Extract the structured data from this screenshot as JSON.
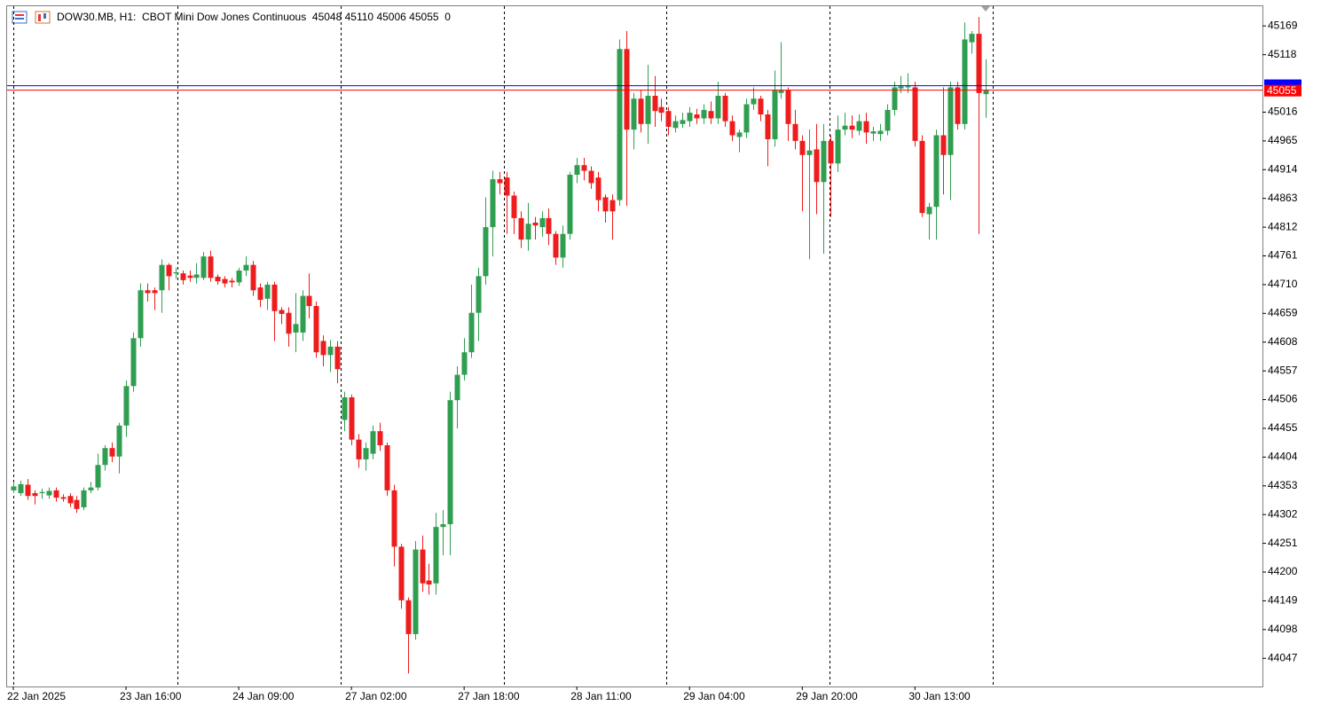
{
  "chart_data": {
    "type": "candlestick",
    "symbol": "DOW30.MB, H1:",
    "description": "CBOT Mini Dow Jones Continuous",
    "volume": 0,
    "up_color": "#2f9e50",
    "down_color": "#ee1c1c",
    "grid": false,
    "ylim": [
      43997,
      45204
    ],
    "yticks": [
      44047,
      44098,
      44149,
      44200,
      44251,
      44302,
      44353,
      44404,
      44455,
      44506,
      44557,
      44608,
      44659,
      44710,
      44761,
      44812,
      44863,
      44914,
      44965,
      45016,
      45118,
      45169
    ],
    "ask_line": {
      "value": 45063,
      "color": "#0000ff"
    },
    "bid_line": {
      "value": 45055,
      "color": "#ff0000"
    },
    "categories": [
      "22 Jan 2025",
      null,
      null,
      null,
      null,
      null,
      null,
      null,
      null,
      null,
      null,
      null,
      null,
      null,
      null,
      null,
      "23 Jan 16:00",
      null,
      null,
      null,
      null,
      null,
      null,
      null,
      null,
      null,
      null,
      null,
      null,
      null,
      null,
      null,
      "24 Jan 09:00",
      null,
      null,
      null,
      null,
      null,
      null,
      null,
      null,
      null,
      null,
      null,
      null,
      null,
      null,
      null,
      "27 Jan 02:00",
      null,
      null,
      null,
      null,
      null,
      null,
      null,
      null,
      null,
      null,
      null,
      null,
      null,
      null,
      null,
      "27 Jan 18:00",
      null,
      null,
      null,
      null,
      null,
      null,
      null,
      null,
      null,
      null,
      null,
      null,
      null,
      null,
      null,
      "28 Jan 11:00",
      null,
      null,
      null,
      null,
      null,
      null,
      null,
      null,
      null,
      null,
      null,
      null,
      null,
      null,
      null,
      "29 Jan 04:00",
      null,
      null,
      null,
      null,
      null,
      null,
      null,
      null,
      null,
      null,
      null,
      null,
      null,
      null,
      null,
      "29 Jan 20:00",
      null,
      null,
      null,
      null,
      null,
      null,
      null,
      null,
      null,
      null,
      null,
      null,
      null,
      null,
      null,
      "30 Jan 13:00",
      null,
      null,
      null,
      null,
      null,
      null,
      null,
      null,
      null,
      null
    ],
    "open": [
      44345,
      44340,
      44355,
      44340,
      44340,
      44336,
      44345,
      44333,
      44335,
      44328,
      44315,
      44345,
      44350,
      44390,
      44420,
      44405,
      44460,
      44530,
      44615,
      44700,
      44700,
      44700,
      44745,
      44730,
      44730,
      44726,
      44722,
      44722,
      44760,
      44724,
      44720,
      44717,
      44714,
      44735,
      44745,
      44705,
      44685,
      44710,
      44665,
      44660,
      44625,
      44625,
      44690,
      44672,
      44610,
      44585,
      44600,
      44470,
      44510,
      44435,
      44400,
      44410,
      44450,
      44425,
      44345,
      44245,
      44150,
      44090,
      44240,
      44185,
      44180,
      44280,
      44285,
      44505,
      44550,
      44590,
      44660,
      44725,
      44812,
      44897,
      44900,
      44868,
      44828,
      44790,
      44820,
      44812,
      44828,
      44800,
      44758,
      44800,
      44905,
      44922,
      44912,
      44900,
      44865,
      44860,
      44860,
      45128,
      44985,
      45040,
      44995,
      45045,
      45025,
      45018,
      44988,
      44995,
      45000,
      45012,
      45005,
      45018,
      45005,
      45045,
      45000,
      44972,
      44980,
      45030,
      45040,
      45012,
      44968,
      45050,
      45055,
      44995,
      44965,
      44940,
      44950,
      44892,
      44965,
      44925,
      44985,
      44992,
      44983,
      45000,
      44978,
      44977,
      44983,
      45020,
      45058,
      45060,
      45060,
      44965,
      44835,
      44848,
      44975,
      44940,
      45060,
      44995,
      45140,
      45155,
      45048
    ],
    "high": [
      44358,
      44362,
      44365,
      44345,
      44348,
      44350,
      44350,
      44338,
      44340,
      44335,
      44350,
      44360,
      44410,
      44425,
      44430,
      44465,
      44540,
      44625,
      44712,
      44712,
      44705,
      44755,
      44748,
      44740,
      44735,
      44735,
      44748,
      44768,
      44770,
      44728,
      44725,
      44722,
      44740,
      44760,
      44752,
      44712,
      44715,
      44715,
      44670,
      44670,
      44695,
      44700,
      44730,
      44680,
      44620,
      44612,
      44610,
      44520,
      44515,
      44445,
      44430,
      44460,
      44465,
      44430,
      44355,
      44250,
      44155,
      44255,
      44265,
      44215,
      44305,
      44310,
      44520,
      44565,
      44615,
      44710,
      44740,
      44865,
      44912,
      44910,
      44910,
      44875,
      44840,
      44855,
      44830,
      44840,
      44845,
      44805,
      44815,
      44910,
      44935,
      44935,
      44920,
      44910,
      44870,
      44870,
      45145,
      45160,
      45050,
      45055,
      45100,
      45080,
      45040,
      45025,
      45010,
      45015,
      45025,
      45022,
      45030,
      45035,
      45070,
      45050,
      45010,
      44985,
      45040,
      45060,
      45045,
      45020,
      45090,
      45140,
      45060,
      45020,
      44975,
      44985,
      44995,
      44995,
      44975,
      45010,
      45015,
      45010,
      45012,
      45015,
      44990,
      44995,
      45030,
      45070,
      45080,
      45085,
      45070,
      44975,
      44855,
      44985,
      45060,
      45070,
      45070,
      45175,
      45160,
      45185,
      45110
    ],
    "low": [
      44340,
      44335,
      44328,
      44320,
      44330,
      44330,
      44325,
      44325,
      44315,
      44305,
      44310,
      44340,
      44345,
      44380,
      44395,
      44375,
      44440,
      44520,
      44600,
      44680,
      44665,
      44660,
      44700,
      44720,
      44710,
      44715,
      44712,
      44718,
      44715,
      44710,
      44705,
      44705,
      44708,
      44725,
      44690,
      44670,
      44665,
      44610,
      44640,
      44600,
      44590,
      44610,
      44650,
      44580,
      44565,
      44555,
      44535,
      44450,
      44425,
      44385,
      44380,
      44400,
      44415,
      44335,
      44210,
      44135,
      44020,
      44080,
      44165,
      44160,
      44160,
      44230,
      44230,
      44455,
      44540,
      44580,
      44610,
      44710,
      44760,
      44870,
      44800,
      44800,
      44775,
      44770,
      44790,
      44795,
      44780,
      44745,
      44740,
      44790,
      44890,
      44895,
      44880,
      44840,
      44820,
      44790,
      44850,
      44850,
      44950,
      44980,
      44960,
      44990,
      45000,
      44975,
      44980,
      44988,
      44990,
      44995,
      44995,
      44995,
      44995,
      44990,
      44965,
      44945,
      44970,
      45020,
      45000,
      44920,
      44955,
      45040,
      44965,
      44950,
      44840,
      44755,
      44835,
      44765,
      44830,
      44910,
      44975,
      44970,
      44975,
      44960,
      44965,
      44965,
      44975,
      45010,
      45050,
      45050,
      44955,
      44830,
      44790,
      44790,
      44870,
      44860,
      44985,
      44985,
      45120,
      44800,
      45006
    ],
    "close": [
      44352,
      44356,
      44335,
      44335,
      44342,
      44344,
      44332,
      44330,
      44322,
      44312,
      44345,
      44350,
      44390,
      44420,
      44405,
      44460,
      44530,
      44615,
      44700,
      44695,
      44695,
      44745,
      44725,
      44732,
      44718,
      44722,
      44728,
      44760,
      44722,
      44716,
      44712,
      44714,
      44735,
      44745,
      44700,
      44683,
      44710,
      44663,
      44658,
      44623,
      44640,
      44690,
      44672,
      44590,
      44585,
      44600,
      44560,
      44510,
      44435,
      44400,
      44420,
      44450,
      44425,
      44345,
      44245,
      44150,
      44090,
      44240,
      44180,
      44178,
      44280,
      44285,
      44505,
      44550,
      44590,
      44660,
      44725,
      44812,
      44897,
      44890,
      44868,
      44828,
      44790,
      44818,
      44815,
      44828,
      44800,
      44758,
      44800,
      44905,
      44922,
      44912,
      44890,
      44860,
      44840,
      44840,
      45128,
      44985,
      45040,
      44995,
      45045,
      45018,
      45015,
      44990,
      45000,
      45002,
      45015,
      45005,
      45020,
      45005,
      45045,
      45000,
      44975,
      44980,
      45030,
      45040,
      45012,
      44968,
      45055,
      45055,
      44995,
      44965,
      44940,
      44948,
      44892,
      44965,
      44925,
      44985,
      44992,
      44985,
      45000,
      44980,
      44982,
      44983,
      45020,
      45060,
      45062,
      45062,
      44965,
      44837,
      44848,
      44975,
      44940,
      45060,
      44995,
      45145,
      45155,
      45050,
      45055
    ]
  }
}
